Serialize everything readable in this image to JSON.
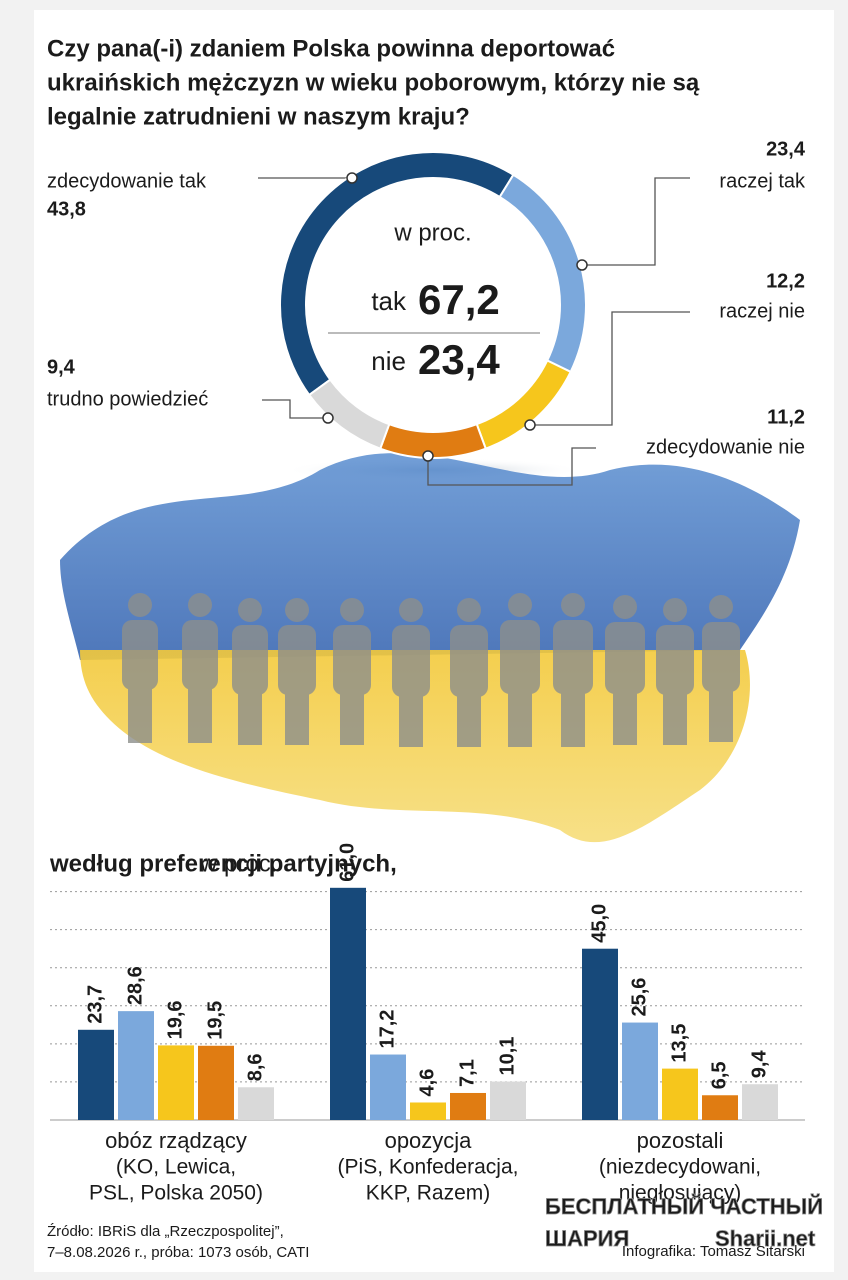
{
  "chart_data": [
    {
      "type": "donut",
      "title_lines": [
        "Czy pana(-i) zdaniem Polska powinna deportować",
        "ukraińskich mężczyzn w wieku poborowym, którzy nie są",
        "legalnie zatrudnieni w naszym kraju?"
      ],
      "unit": "w proc.",
      "categories": [
        "zdecydowanie tak",
        "raczej tak",
        "raczej nie",
        "zdecydowanie nie",
        "trudno powiedzieć"
      ],
      "values": [
        43.8,
        23.4,
        12.2,
        11.2,
        9.4
      ],
      "value_labels": [
        "43,8",
        "23,4",
        "12,2",
        "11,2",
        "9,4"
      ],
      "colors": [
        "#17497a",
        "#7ba8dc",
        "#f6c61c",
        "#e07c12",
        "#d9d9d9"
      ],
      "summary": [
        {
          "label": "tak",
          "value": 67.2,
          "value_label": "67,2",
          "color": "#17497a"
        },
        {
          "label": "nie",
          "value": 23.4,
          "value_label": "23,4",
          "color": "#e0650f"
        }
      ]
    },
    {
      "type": "bar",
      "title": "według preferencji partyjnych,",
      "unit": "w proc.",
      "categories": [
        "obóz rządzący",
        "opozycja",
        "pozostali"
      ],
      "category_notes": [
        [
          "(KO, Lewica,",
          "PSL, Polska 2050)"
        ],
        [
          "(PiS, Konfederacja,",
          "KKP, Razem)"
        ],
        [
          "(niezdecydowani,",
          "niegłosujący)"
        ]
      ],
      "series": [
        {
          "color": "#17497a",
          "values": [
            23.7,
            61.0,
            45.0
          ],
          "value_labels": [
            "23,7",
            "61,0",
            "45,0"
          ]
        },
        {
          "color": "#7ba8dc",
          "values": [
            28.6,
            17.2,
            25.6
          ],
          "value_labels": [
            "28,6",
            "17,2",
            "25,6"
          ]
        },
        {
          "color": "#f6c61c",
          "values": [
            19.6,
            4.6,
            13.5
          ],
          "value_labels": [
            "19,6",
            "4,6",
            "13,5"
          ]
        },
        {
          "color": "#e07c12",
          "values": [
            19.5,
            7.1,
            6.5
          ],
          "value_labels": [
            "19,5",
            "7,1",
            "6,5"
          ]
        },
        {
          "color": "#d9d9d9",
          "values": [
            8.6,
            10.1,
            9.4
          ],
          "value_labels": [
            "8,6",
            "10,1",
            "9,4"
          ]
        }
      ],
      "ylim": [
        0,
        62
      ],
      "ygrid": [
        10,
        20,
        30,
        40,
        50,
        60
      ],
      "grid": true
    }
  ],
  "source_lines": [
    "Źródło: IBRiS dla „Rzeczpospolitej”,",
    "7–8.08.2026 r., próba: 1073 osób, CATI"
  ],
  "credit": "Infografika: Tomasz Sitarski",
  "watermark": [
    "БЕСПЛАТНЫЙ ЧАСТНЫЙ",
    "ШАРИЯ",
    "Sharii.net"
  ]
}
